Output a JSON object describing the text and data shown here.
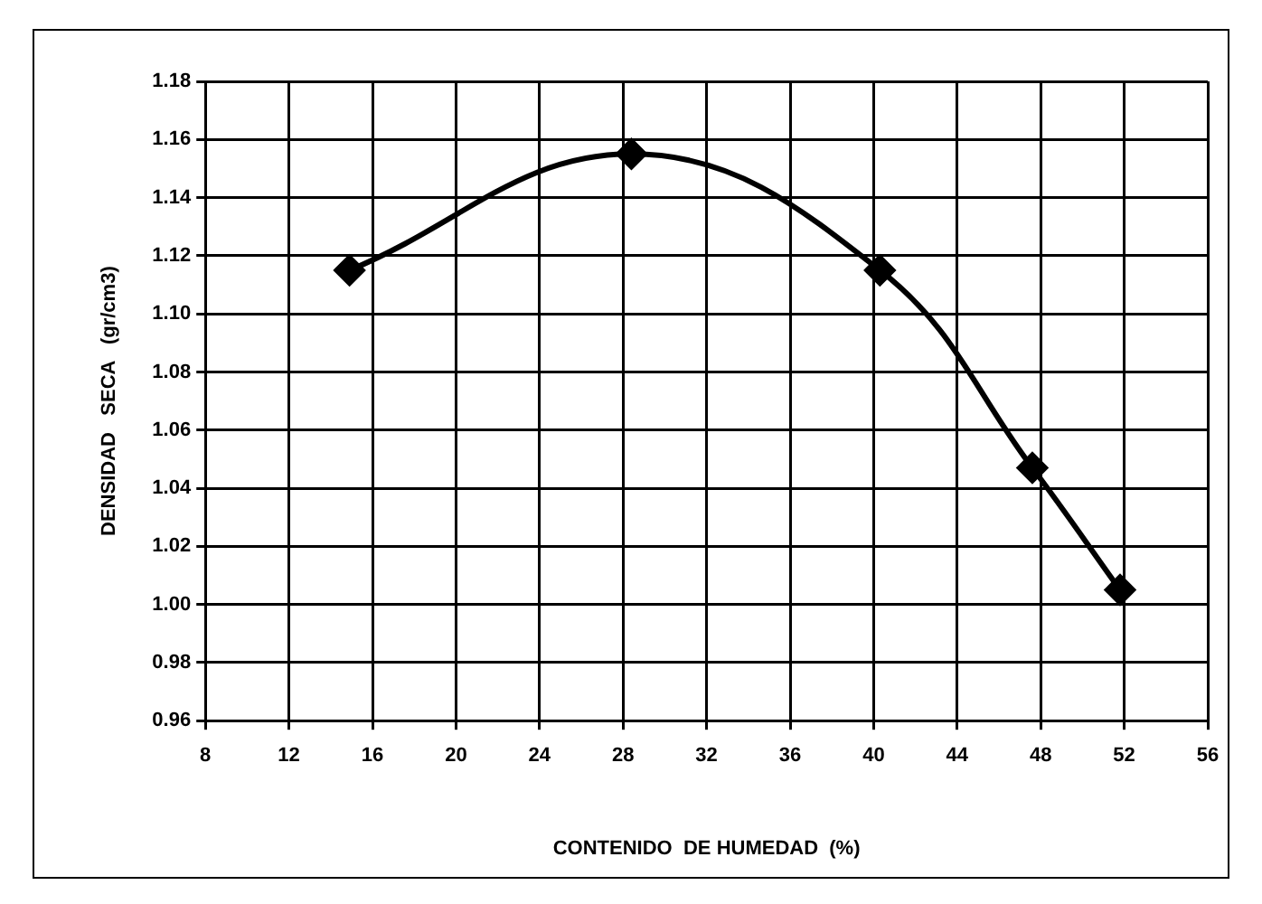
{
  "chart_data": {
    "type": "line",
    "xlabel": "CONTENIDO  DE HUMEDAD  (%)",
    "ylabel": "DENSIDAD   SECA   (gr/cm3)",
    "x": [
      14.9,
      28.4,
      40.3,
      47.6,
      51.8
    ],
    "series": [
      {
        "color": "#000000",
        "values": [
          1.115,
          1.155,
          1.115,
          1.047,
          1.005
        ]
      }
    ],
    "xlim": [
      8,
      56
    ],
    "xticks": [
      8,
      12,
      16,
      20,
      24,
      28,
      32,
      36,
      40,
      44,
      48,
      52,
      56
    ],
    "ylim": [
      0.96,
      1.18
    ],
    "yticks": [
      {
        "value": 0.96,
        "label": "0.96"
      },
      {
        "value": 0.98,
        "label": "0.98"
      },
      {
        "value": 1.0,
        "label": "1.00"
      },
      {
        "value": 1.02,
        "label": "1.02"
      },
      {
        "value": 1.04,
        "label": "1.04"
      },
      {
        "value": 1.06,
        "label": "1.06"
      },
      {
        "value": 1.08,
        "label": "1.08"
      },
      {
        "value": 1.1,
        "label": "1.10"
      },
      {
        "value": 1.12,
        "label": "1.12"
      },
      {
        "value": 1.14,
        "label": "1.14"
      },
      {
        "value": 1.16,
        "label": "1.16"
      },
      {
        "value": 1.18,
        "label": "1.18"
      }
    ],
    "grid": true,
    "legend": false,
    "marker": "diamond",
    "line_style": "solid"
  }
}
